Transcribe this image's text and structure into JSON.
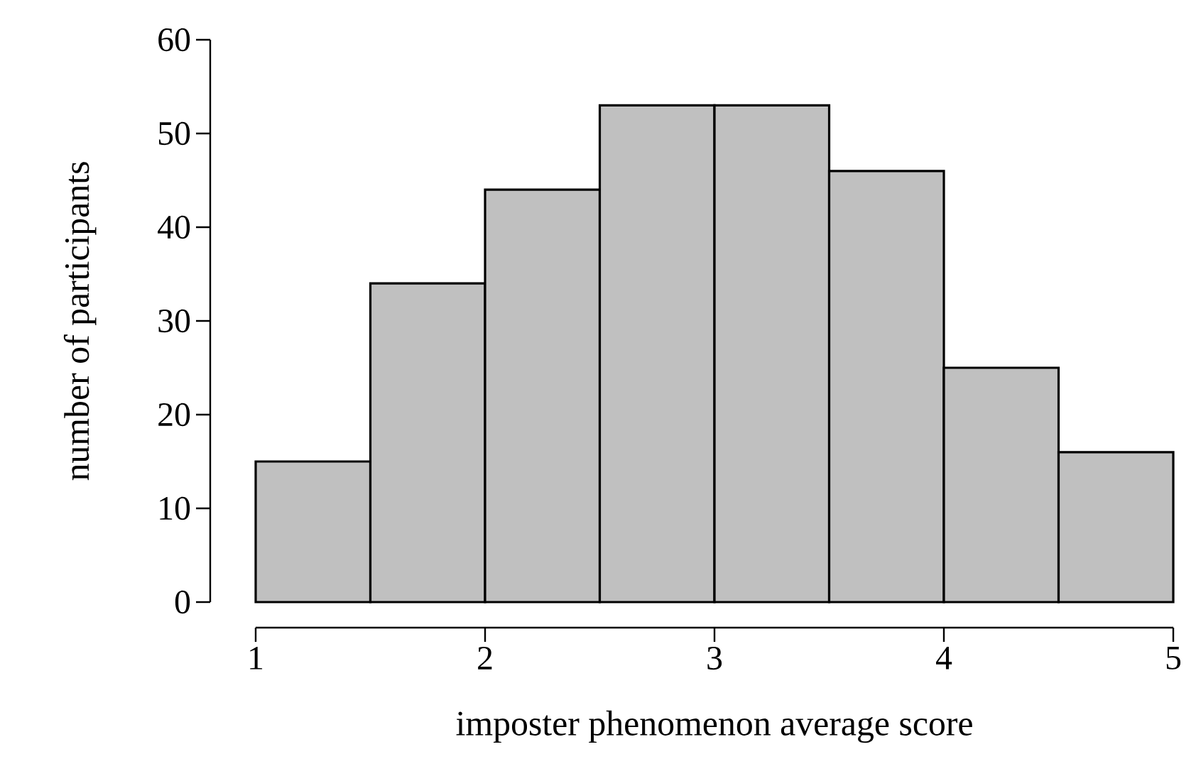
{
  "chart_data": {
    "type": "histogram",
    "xlabel": "imposter phenomenon average score",
    "ylabel": "number of participants",
    "bins": [
      1,
      1.5,
      2,
      2.5,
      3,
      3.5,
      4,
      4.5,
      5
    ],
    "values": [
      15,
      34,
      44,
      53,
      53,
      46,
      25,
      16
    ],
    "color": "#c0c0c0",
    "xlim": [
      1,
      5
    ],
    "xticks": [
      1,
      2,
      3,
      4,
      5
    ],
    "ylim": [
      0,
      60
    ],
    "yticks": [
      0,
      10,
      20,
      30,
      40,
      50,
      60
    ]
  }
}
